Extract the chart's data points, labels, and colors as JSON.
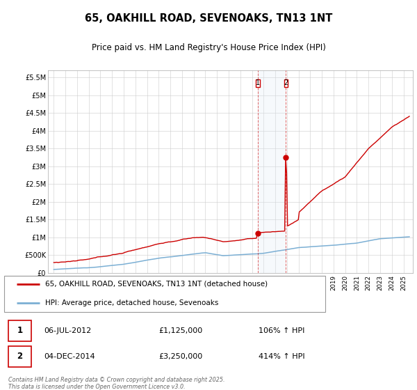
{
  "title": "65, OAKHILL ROAD, SEVENOAKS, TN13 1NT",
  "subtitle": "Price paid vs. HM Land Registry's House Price Index (HPI)",
  "ylim": [
    0,
    5700000
  ],
  "yticks": [
    0,
    500000,
    1000000,
    1500000,
    2000000,
    2500000,
    3000000,
    3500000,
    4000000,
    4500000,
    5000000,
    5500000
  ],
  "ytick_labels": [
    "£0",
    "£500K",
    "£1M",
    "£1.5M",
    "£2M",
    "£2.5M",
    "£3M",
    "£3.5M",
    "£4M",
    "£4.5M",
    "£5M",
    "£5.5M"
  ],
  "hpi_color": "#7bafd4",
  "red_color": "#cc0000",
  "t1_year": 2012.5,
  "t1_price": 1125000,
  "t1_date_str": "06-JUL-2012",
  "t1_pct": "106% ↑ HPI",
  "t2_year": 2014.917,
  "t2_price": 3250000,
  "t2_date_str": "04-DEC-2014",
  "t2_pct": "414% ↑ HPI",
  "legend_red_label": "65, OAKHILL ROAD, SEVENOAKS, TN13 1NT (detached house)",
  "legend_blue_label": "HPI: Average price, detached house, Sevenoaks",
  "footer": "Contains HM Land Registry data © Crown copyright and database right 2025.\nThis data is licensed under the Open Government Licence v3.0.",
  "background_color": "#ffffff",
  "grid_color": "#cccccc",
  "span_color": "#dce9f5"
}
